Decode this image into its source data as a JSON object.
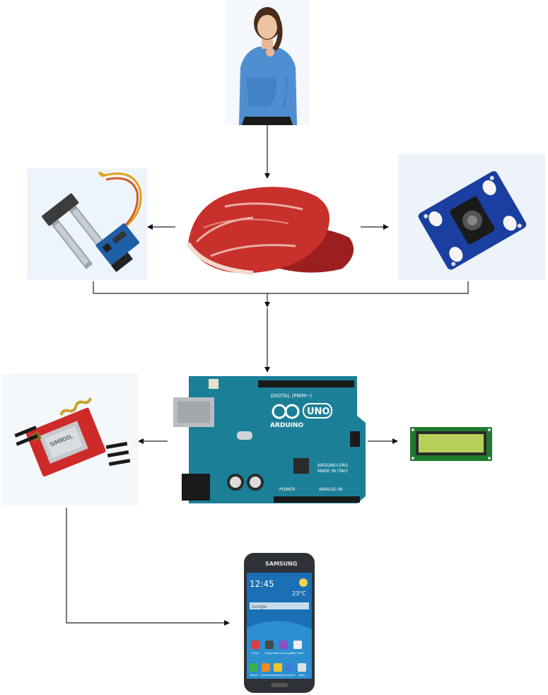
{
  "diagram": {
    "nodes": [
      {
        "id": "person",
        "icon": "thinking-woman-photo"
      },
      {
        "id": "meat",
        "icon": "raw-meat-photo"
      },
      {
        "id": "soil-sensor",
        "icon": "soil-moisture-sensor-photo"
      },
      {
        "id": "color-sensor",
        "icon": "color-sensor-module-photo"
      },
      {
        "id": "arduino",
        "icon": "arduino-uno-board-photo"
      },
      {
        "id": "gsm",
        "icon": "gsm-module-photo"
      },
      {
        "id": "lcd",
        "icon": "lcd-display-photo"
      },
      {
        "id": "phone",
        "icon": "smartphone-photo"
      }
    ],
    "edges": [
      {
        "from": "person",
        "to": "meat"
      },
      {
        "from": "meat",
        "to": "soil-sensor"
      },
      {
        "from": "meat",
        "to": "color-sensor"
      },
      {
        "from": "soil-sensor",
        "to": "arduino"
      },
      {
        "from": "color-sensor",
        "to": "arduino"
      },
      {
        "from": "arduino",
        "to": "gsm"
      },
      {
        "from": "arduino",
        "to": "lcd"
      },
      {
        "from": "gsm",
        "to": "phone"
      }
    ],
    "arduino_labels": {
      "brand": "ARDUINO",
      "model": "UNO",
      "digital": "DIGITAL (PWM~)",
      "power": "POWER",
      "analog": "ANALOG IN",
      "made_in": "MADE IN ITALY",
      "site": "ARDUINO.ORG"
    },
    "gsm_labels": {
      "chip": "SIM800L"
    },
    "phone_labels": {
      "brand": "SAMSUNG",
      "time": "12:45",
      "temperature": "23°C",
      "search": "Google",
      "apps": [
        "Email",
        "Camera",
        "Samsung Apps",
        "Play Store"
      ],
      "dock": [
        "Phone",
        "Contacts",
        "Messaging",
        "Internet",
        "Apps"
      ]
    }
  }
}
